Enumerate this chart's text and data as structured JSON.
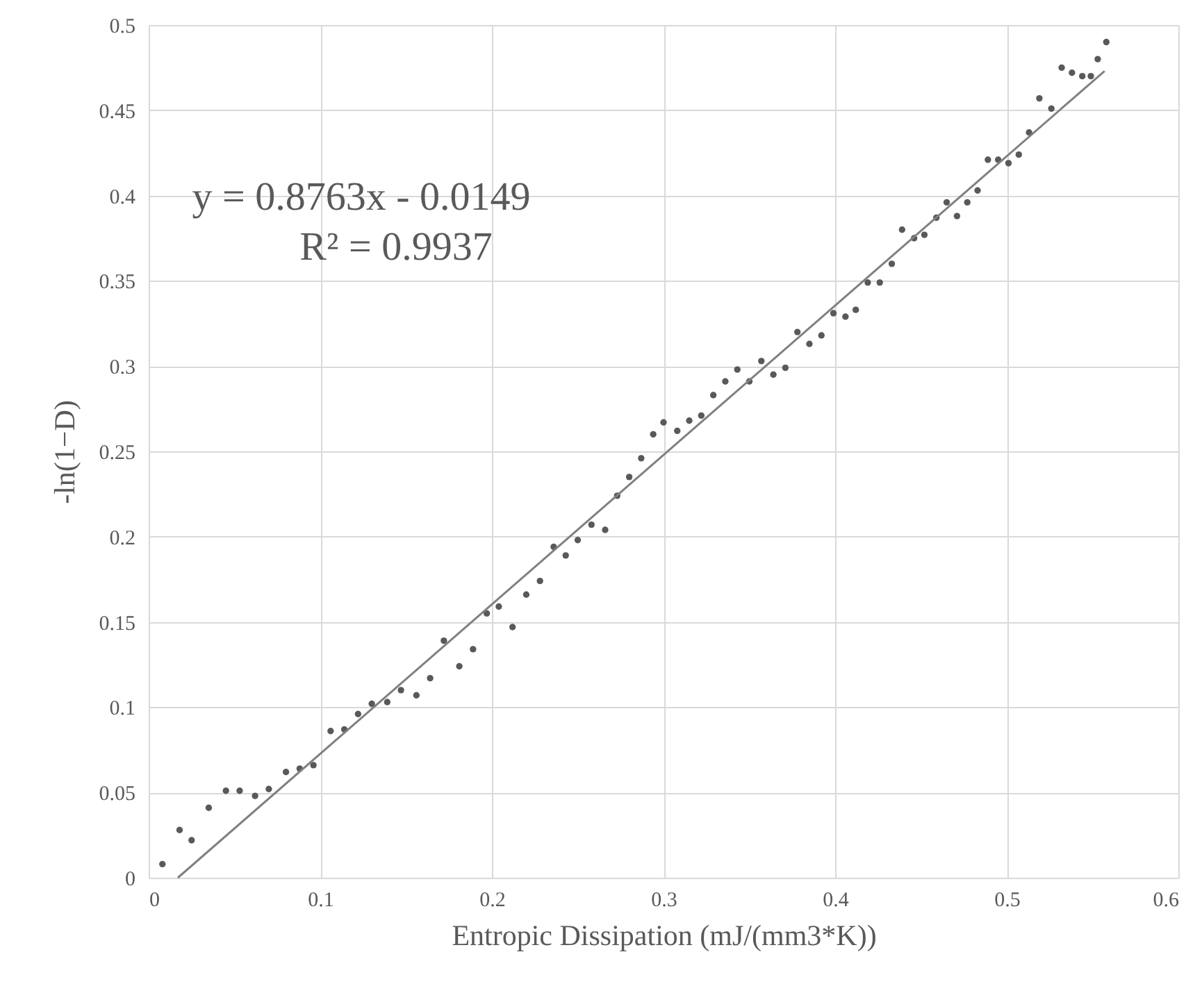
{
  "chart_data": {
    "type": "scatter",
    "xlabel": "Entropic Dissipation (mJ/(mm3*K))",
    "ylabel": "-ln(1−D)",
    "annotations": [
      "y = 0.8763x - 0.0149",
      "R² = 0.9937"
    ],
    "series": [
      {
        "color": "#595959",
        "marker": "circle",
        "x": [
          0.008,
          0.018,
          0.025,
          0.035,
          0.045,
          0.053,
          0.062,
          0.07,
          0.08,
          0.088,
          0.096,
          0.106,
          0.114,
          0.122,
          0.13,
          0.139,
          0.147,
          0.156,
          0.164,
          0.172,
          0.181,
          0.189,
          0.197,
          0.204,
          0.212,
          0.22,
          0.228,
          0.236,
          0.243,
          0.25,
          0.258,
          0.266,
          0.273,
          0.28,
          0.287,
          0.294,
          0.3,
          0.308,
          0.315,
          0.322,
          0.329,
          0.336,
          0.343,
          0.35,
          0.357,
          0.364,
          0.371,
          0.378,
          0.385,
          0.392,
          0.399,
          0.406,
          0.412,
          0.419,
          0.426,
          0.433,
          0.439,
          0.446,
          0.452,
          0.459,
          0.465,
          0.471,
          0.477,
          0.483,
          0.489,
          0.495,
          0.501,
          0.507,
          0.513,
          0.519,
          0.526,
          0.532,
          0.538,
          0.544,
          0.549,
          0.553,
          0.558
        ],
        "values": [
          0.008,
          0.028,
          0.022,
          0.041,
          0.051,
          0.051,
          0.048,
          0.052,
          0.062,
          0.064,
          0.066,
          0.086,
          0.087,
          0.096,
          0.102,
          0.103,
          0.11,
          0.107,
          0.117,
          0.139,
          0.124,
          0.134,
          0.155,
          0.159,
          0.147,
          0.166,
          0.174,
          0.194,
          0.189,
          0.198,
          0.207,
          0.204,
          0.224,
          0.235,
          0.246,
          0.26,
          0.267,
          0.262,
          0.268,
          0.271,
          0.283,
          0.291,
          0.298,
          0.291,
          0.303,
          0.295,
          0.299,
          0.32,
          0.313,
          0.318,
          0.331,
          0.329,
          0.333,
          0.349,
          0.349,
          0.36,
          0.38,
          0.375,
          0.377,
          0.387,
          0.396,
          0.388,
          0.396,
          0.403,
          0.421,
          0.421,
          0.419,
          0.424,
          0.437,
          0.457,
          0.451,
          0.475,
          0.472,
          0.47,
          0.47,
          0.48,
          0.49
        ]
      },
      {
        "type": "line",
        "color": "#808080",
        "marker": "none",
        "line_style": "solid",
        "x": [
          0.017,
          0.557
        ],
        "values": [
          0,
          0.473
        ]
      }
    ],
    "xlim": [
      0,
      0.6
    ],
    "xticks": [
      0,
      0.1,
      0.2,
      0.3,
      0.4,
      0.5,
      0.6
    ],
    "ylim": [
      0,
      0.5
    ],
    "yticks": [
      0,
      0.05,
      0.1,
      0.15,
      0.2,
      0.25,
      0.3,
      0.35,
      0.4,
      0.45,
      0.5
    ],
    "grid": true
  }
}
